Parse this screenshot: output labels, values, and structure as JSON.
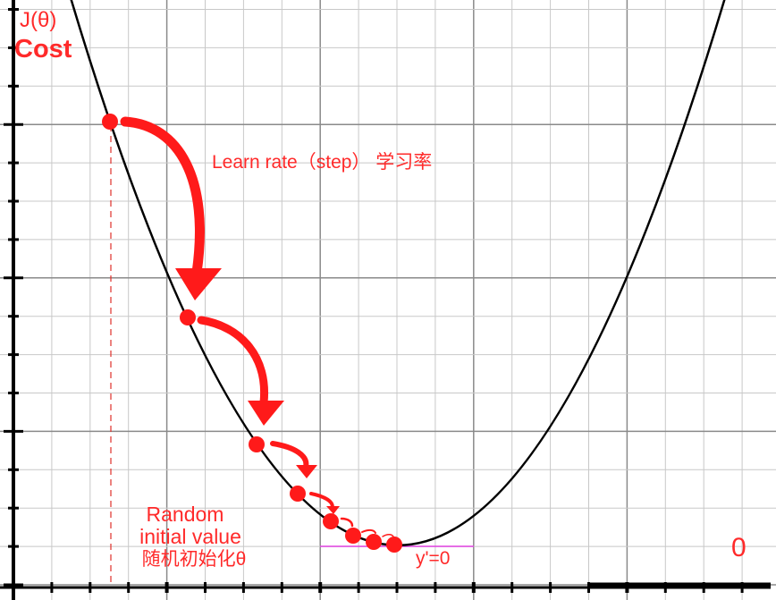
{
  "axis": {
    "y_label": "J(θ)",
    "y_sublabel": "Cost",
    "origin_label": "0"
  },
  "annotations": {
    "learn_rate": "Learn rate（step） 学习率",
    "random_1": "Random",
    "random_2": "initial value",
    "random_3": "随机初始化θ",
    "minimum": "y'=0"
  }
}
